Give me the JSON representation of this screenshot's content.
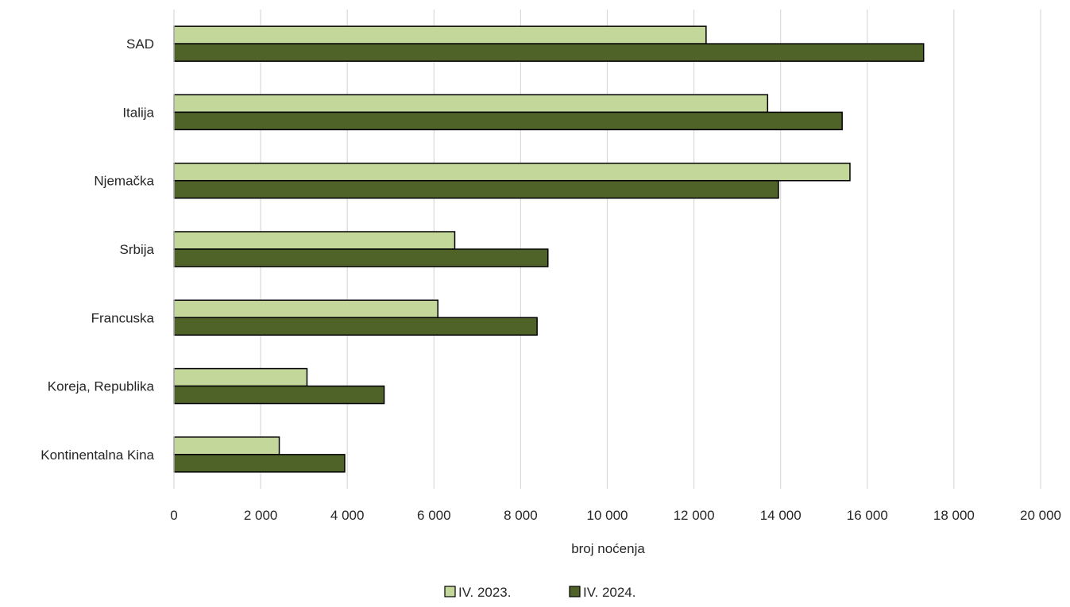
{
  "chart_data": {
    "type": "bar",
    "orientation": "horizontal",
    "categories": [
      "SAD",
      "Italija",
      "Njemačka",
      "Srbija",
      "Francuska",
      "Koreja, Republika",
      "Kontinentalna Kina"
    ],
    "series": [
      {
        "name": "IV. 2023.",
        "color": "#c4d79b",
        "values": [
          12280,
          13700,
          15600,
          6480,
          6090,
          3070,
          2430
        ]
      },
      {
        "name": "IV. 2024.",
        "color": "#4f6228",
        "values": [
          17300,
          15420,
          13950,
          8630,
          8380,
          4850,
          3940
        ]
      }
    ],
    "xlabel": "broj noćenja",
    "ylabel": "",
    "xlim": [
      0,
      20000
    ],
    "xticks": [
      0,
      2000,
      4000,
      6000,
      8000,
      10000,
      12000,
      14000,
      16000,
      18000,
      20000
    ],
    "xtick_labels": [
      "0",
      "2 000",
      "4 000",
      "6 000",
      "8 000",
      "10 000",
      "12 000",
      "14 000",
      "16 000",
      "18 000",
      "20 000"
    ],
    "grid": "vertical",
    "legend_position": "bottom-center"
  }
}
